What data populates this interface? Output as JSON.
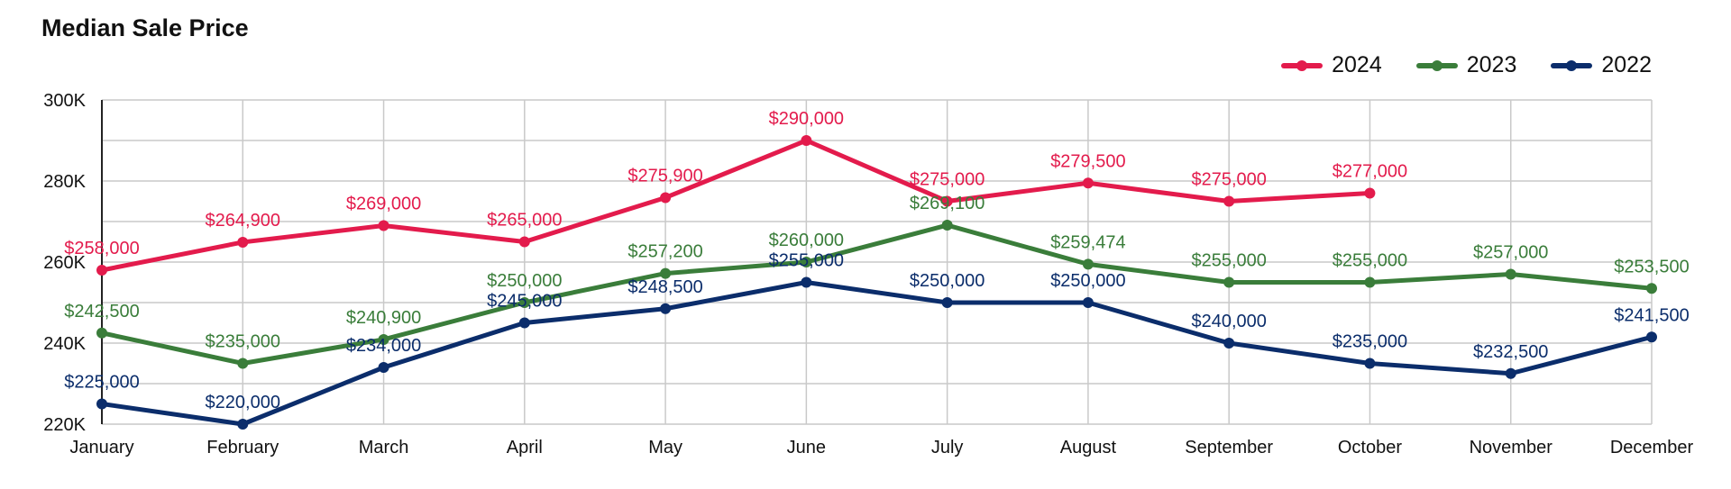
{
  "chart_data": {
    "type": "line",
    "title": "Median Sale Price",
    "categories": [
      "January",
      "February",
      "March",
      "April",
      "May",
      "June",
      "July",
      "August",
      "September",
      "October",
      "November",
      "December"
    ],
    "y_ticks": [
      "300K",
      "280K",
      "260K",
      "240K",
      "220K"
    ],
    "ylim": [
      220000,
      300000
    ],
    "grid": true,
    "legend_position": "top-right",
    "series": [
      {
        "name": "2024",
        "color": "#e31b4c",
        "values": [
          258000,
          264900,
          269000,
          265000,
          275900,
          290000,
          275000,
          279500,
          275000,
          277000,
          null,
          null
        ],
        "labels": [
          "$258,000",
          "$264,900",
          "$269,000",
          "$265,000",
          "$275,900",
          "$290,000",
          "$275,000",
          "$279,500",
          "$275,000",
          "$277,000",
          null,
          null
        ]
      },
      {
        "name": "2023",
        "color": "#3a7d3a",
        "values": [
          242500,
          235000,
          240900,
          250000,
          257200,
          260000,
          269100,
          259474,
          255000,
          255000,
          257000,
          253500
        ],
        "labels": [
          "$242,500",
          "$235,000",
          "$240,900",
          "$250,000",
          "$257,200",
          "$260,000",
          "$269,100",
          "$259,474",
          "$255,000",
          "$255,000",
          "$257,000",
          "$253,500"
        ]
      },
      {
        "name": "2022",
        "color": "#0b2d6b",
        "values": [
          225000,
          220000,
          234000,
          245000,
          248500,
          255000,
          250000,
          250000,
          240000,
          235000,
          232500,
          241500
        ],
        "labels": [
          "$225,000",
          "$220,000",
          "$234,000",
          "$245,000",
          "$248,500",
          "$255,000",
          "$250,000",
          "$250,000",
          "$240,000",
          "$235,000",
          "$232,500",
          "$241,500"
        ]
      }
    ]
  }
}
